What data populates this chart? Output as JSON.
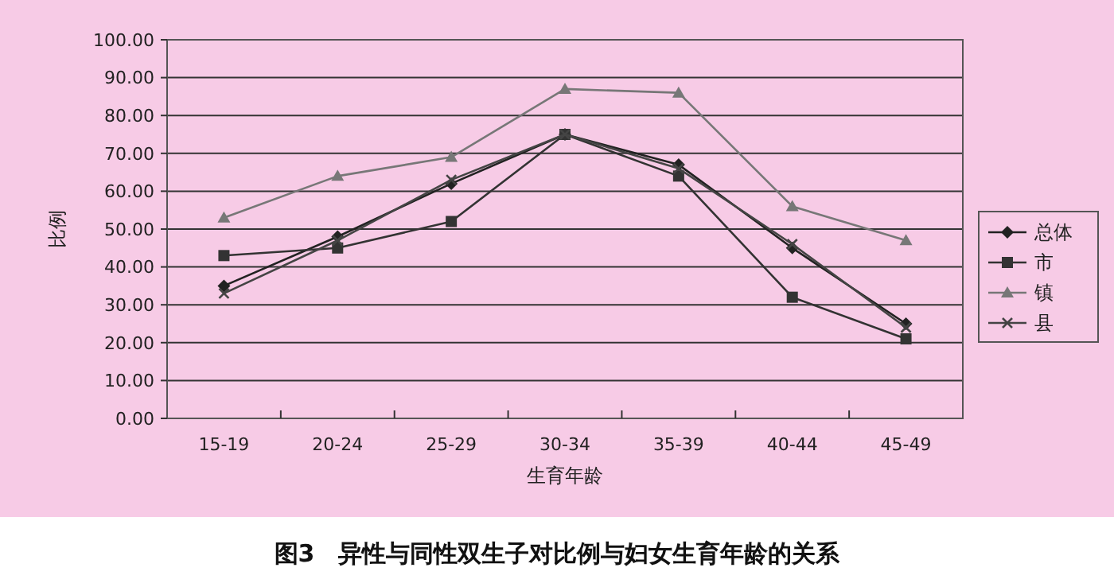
{
  "chart_data": {
    "type": "line",
    "title": "图3　异性与同性双生子对比例与妇女生育年龄的关系",
    "xlabel": "生育年龄",
    "ylabel": "比例",
    "categories": [
      "15-19",
      "20-24",
      "25-29",
      "30-34",
      "35-39",
      "40-44",
      "45-49"
    ],
    "series": [
      {
        "name": "总体",
        "color": "#222222",
        "marker": "diamond",
        "values": [
          35,
          48,
          62,
          75,
          67,
          45,
          25
        ]
      },
      {
        "name": "市",
        "color": "#333333",
        "marker": "square",
        "values": [
          43,
          45,
          52,
          75,
          64,
          32,
          21
        ]
      },
      {
        "name": "镇",
        "color": "#777777",
        "marker": "triangle",
        "values": [
          53,
          64,
          69,
          87,
          86,
          56,
          47
        ]
      },
      {
        "name": "县",
        "color": "#444444",
        "marker": "cross",
        "values": [
          33,
          47,
          63,
          75,
          66,
          46,
          24
        ]
      }
    ],
    "ylim": [
      0,
      100
    ],
    "yticks": [
      {
        "value": 0,
        "label": "0.00"
      },
      {
        "value": 10,
        "label": "10.00"
      },
      {
        "value": 20,
        "label": "20.00"
      },
      {
        "value": 30,
        "label": "30.00"
      },
      {
        "value": 40,
        "label": "40.00"
      },
      {
        "value": 50,
        "label": "50.00"
      },
      {
        "value": 60,
        "label": "60.00"
      },
      {
        "value": 70,
        "label": "70.00"
      },
      {
        "value": 80,
        "label": "80.00"
      },
      {
        "value": 90,
        "label": "90.00"
      },
      {
        "value": 100,
        "label": "100.00"
      }
    ],
    "grid": "y",
    "legend": "right",
    "line_style": "solid"
  }
}
